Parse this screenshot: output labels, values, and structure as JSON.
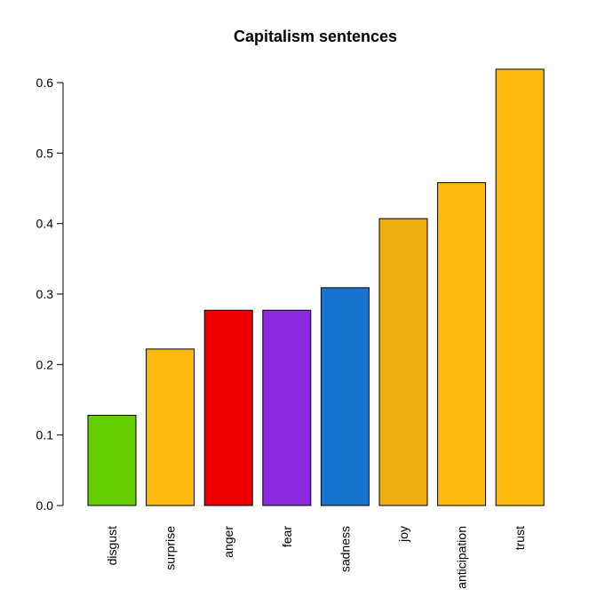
{
  "chart_data": {
    "type": "bar",
    "title": "Capitalism sentences",
    "xlabel": "",
    "ylabel": "",
    "categories": [
      "disgust",
      "surprise",
      "anger",
      "fear",
      "sadness",
      "joy",
      "anticipation",
      "trust"
    ],
    "values": [
      0.128,
      0.222,
      0.277,
      0.277,
      0.309,
      0.407,
      0.458,
      0.619
    ],
    "colors": [
      "#66cd00",
      "#ffb90f",
      "#ee0000",
      "#8a2be2",
      "#1874cd",
      "#eead0e",
      "#ffb90f",
      "#ffb90f"
    ],
    "yticks": [
      "0.0",
      "0.1",
      "0.2",
      "0.3",
      "0.4",
      "0.5",
      "0.6"
    ],
    "ylim": [
      0,
      0.6
    ],
    "grid": false,
    "legend": "none"
  }
}
